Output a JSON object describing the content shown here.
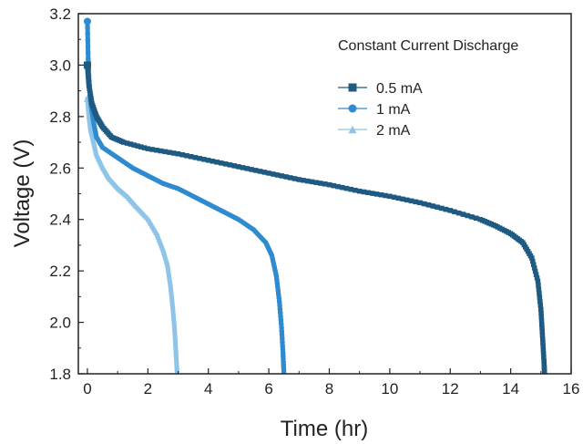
{
  "chart_data": {
    "type": "scatter",
    "title": "",
    "xlabel": "Time (hr)",
    "ylabel": "Voltage (V)",
    "xlim": [
      -0.3,
      16
    ],
    "ylim": [
      1.8,
      3.2
    ],
    "xticks": [
      0,
      2,
      4,
      6,
      8,
      10,
      12,
      14,
      16
    ],
    "yticks": [
      1.8,
      2.0,
      2.2,
      2.4,
      2.6,
      2.8,
      3.0,
      3.2
    ],
    "grid": false,
    "legend": {
      "title": "Constant Current Discharge",
      "placement": "top-right"
    },
    "series": [
      {
        "name": "0.5 mA",
        "marker": "square",
        "color": "#1f5a82",
        "points": [
          [
            0.0,
            3.0
          ],
          [
            0.05,
            2.92
          ],
          [
            0.15,
            2.85
          ],
          [
            0.3,
            2.8
          ],
          [
            0.5,
            2.76
          ],
          [
            0.8,
            2.72
          ],
          [
            1.2,
            2.7
          ],
          [
            2,
            2.675
          ],
          [
            3,
            2.655
          ],
          [
            4,
            2.63
          ],
          [
            5,
            2.605
          ],
          [
            6,
            2.58
          ],
          [
            7,
            2.555
          ],
          [
            8,
            2.535
          ],
          [
            9,
            2.51
          ],
          [
            10,
            2.49
          ],
          [
            11,
            2.465
          ],
          [
            12,
            2.435
          ],
          [
            13,
            2.4
          ],
          [
            13.5,
            2.375
          ],
          [
            14,
            2.345
          ],
          [
            14.4,
            2.31
          ],
          [
            14.7,
            2.25
          ],
          [
            14.9,
            2.16
          ],
          [
            15.0,
            2.05
          ],
          [
            15.05,
            1.95
          ],
          [
            15.1,
            1.85
          ],
          [
            15.12,
            1.8
          ]
        ]
      },
      {
        "name": "1 mA",
        "marker": "circle",
        "color": "#2f8bd0",
        "points": [
          [
            0.0,
            3.17
          ],
          [
            0.03,
            3.0
          ],
          [
            0.1,
            2.86
          ],
          [
            0.2,
            2.78
          ],
          [
            0.3,
            2.72
          ],
          [
            0.5,
            2.68
          ],
          [
            1,
            2.64
          ],
          [
            1.5,
            2.6
          ],
          [
            2,
            2.57
          ],
          [
            2.5,
            2.54
          ],
          [
            3,
            2.52
          ],
          [
            3.5,
            2.49
          ],
          [
            4,
            2.46
          ],
          [
            4.5,
            2.43
          ],
          [
            5,
            2.4
          ],
          [
            5.5,
            2.36
          ],
          [
            5.9,
            2.31
          ],
          [
            6.1,
            2.26
          ],
          [
            6.25,
            2.18
          ],
          [
            6.35,
            2.08
          ],
          [
            6.42,
            1.98
          ],
          [
            6.47,
            1.88
          ],
          [
            6.5,
            1.8
          ]
        ]
      },
      {
        "name": "2 mA",
        "marker": "triangle",
        "color": "#8ec4e8",
        "points": [
          [
            0.0,
            2.87
          ],
          [
            0.05,
            2.8
          ],
          [
            0.1,
            2.75
          ],
          [
            0.2,
            2.7
          ],
          [
            0.3,
            2.65
          ],
          [
            0.5,
            2.6
          ],
          [
            0.7,
            2.56
          ],
          [
            1,
            2.52
          ],
          [
            1.3,
            2.49
          ],
          [
            1.6,
            2.45
          ],
          [
            2,
            2.4
          ],
          [
            2.3,
            2.34
          ],
          [
            2.5,
            2.28
          ],
          [
            2.65,
            2.22
          ],
          [
            2.75,
            2.14
          ],
          [
            2.82,
            2.06
          ],
          [
            2.88,
            1.98
          ],
          [
            2.92,
            1.9
          ],
          [
            2.95,
            1.84
          ],
          [
            2.97,
            1.8
          ]
        ]
      }
    ]
  }
}
